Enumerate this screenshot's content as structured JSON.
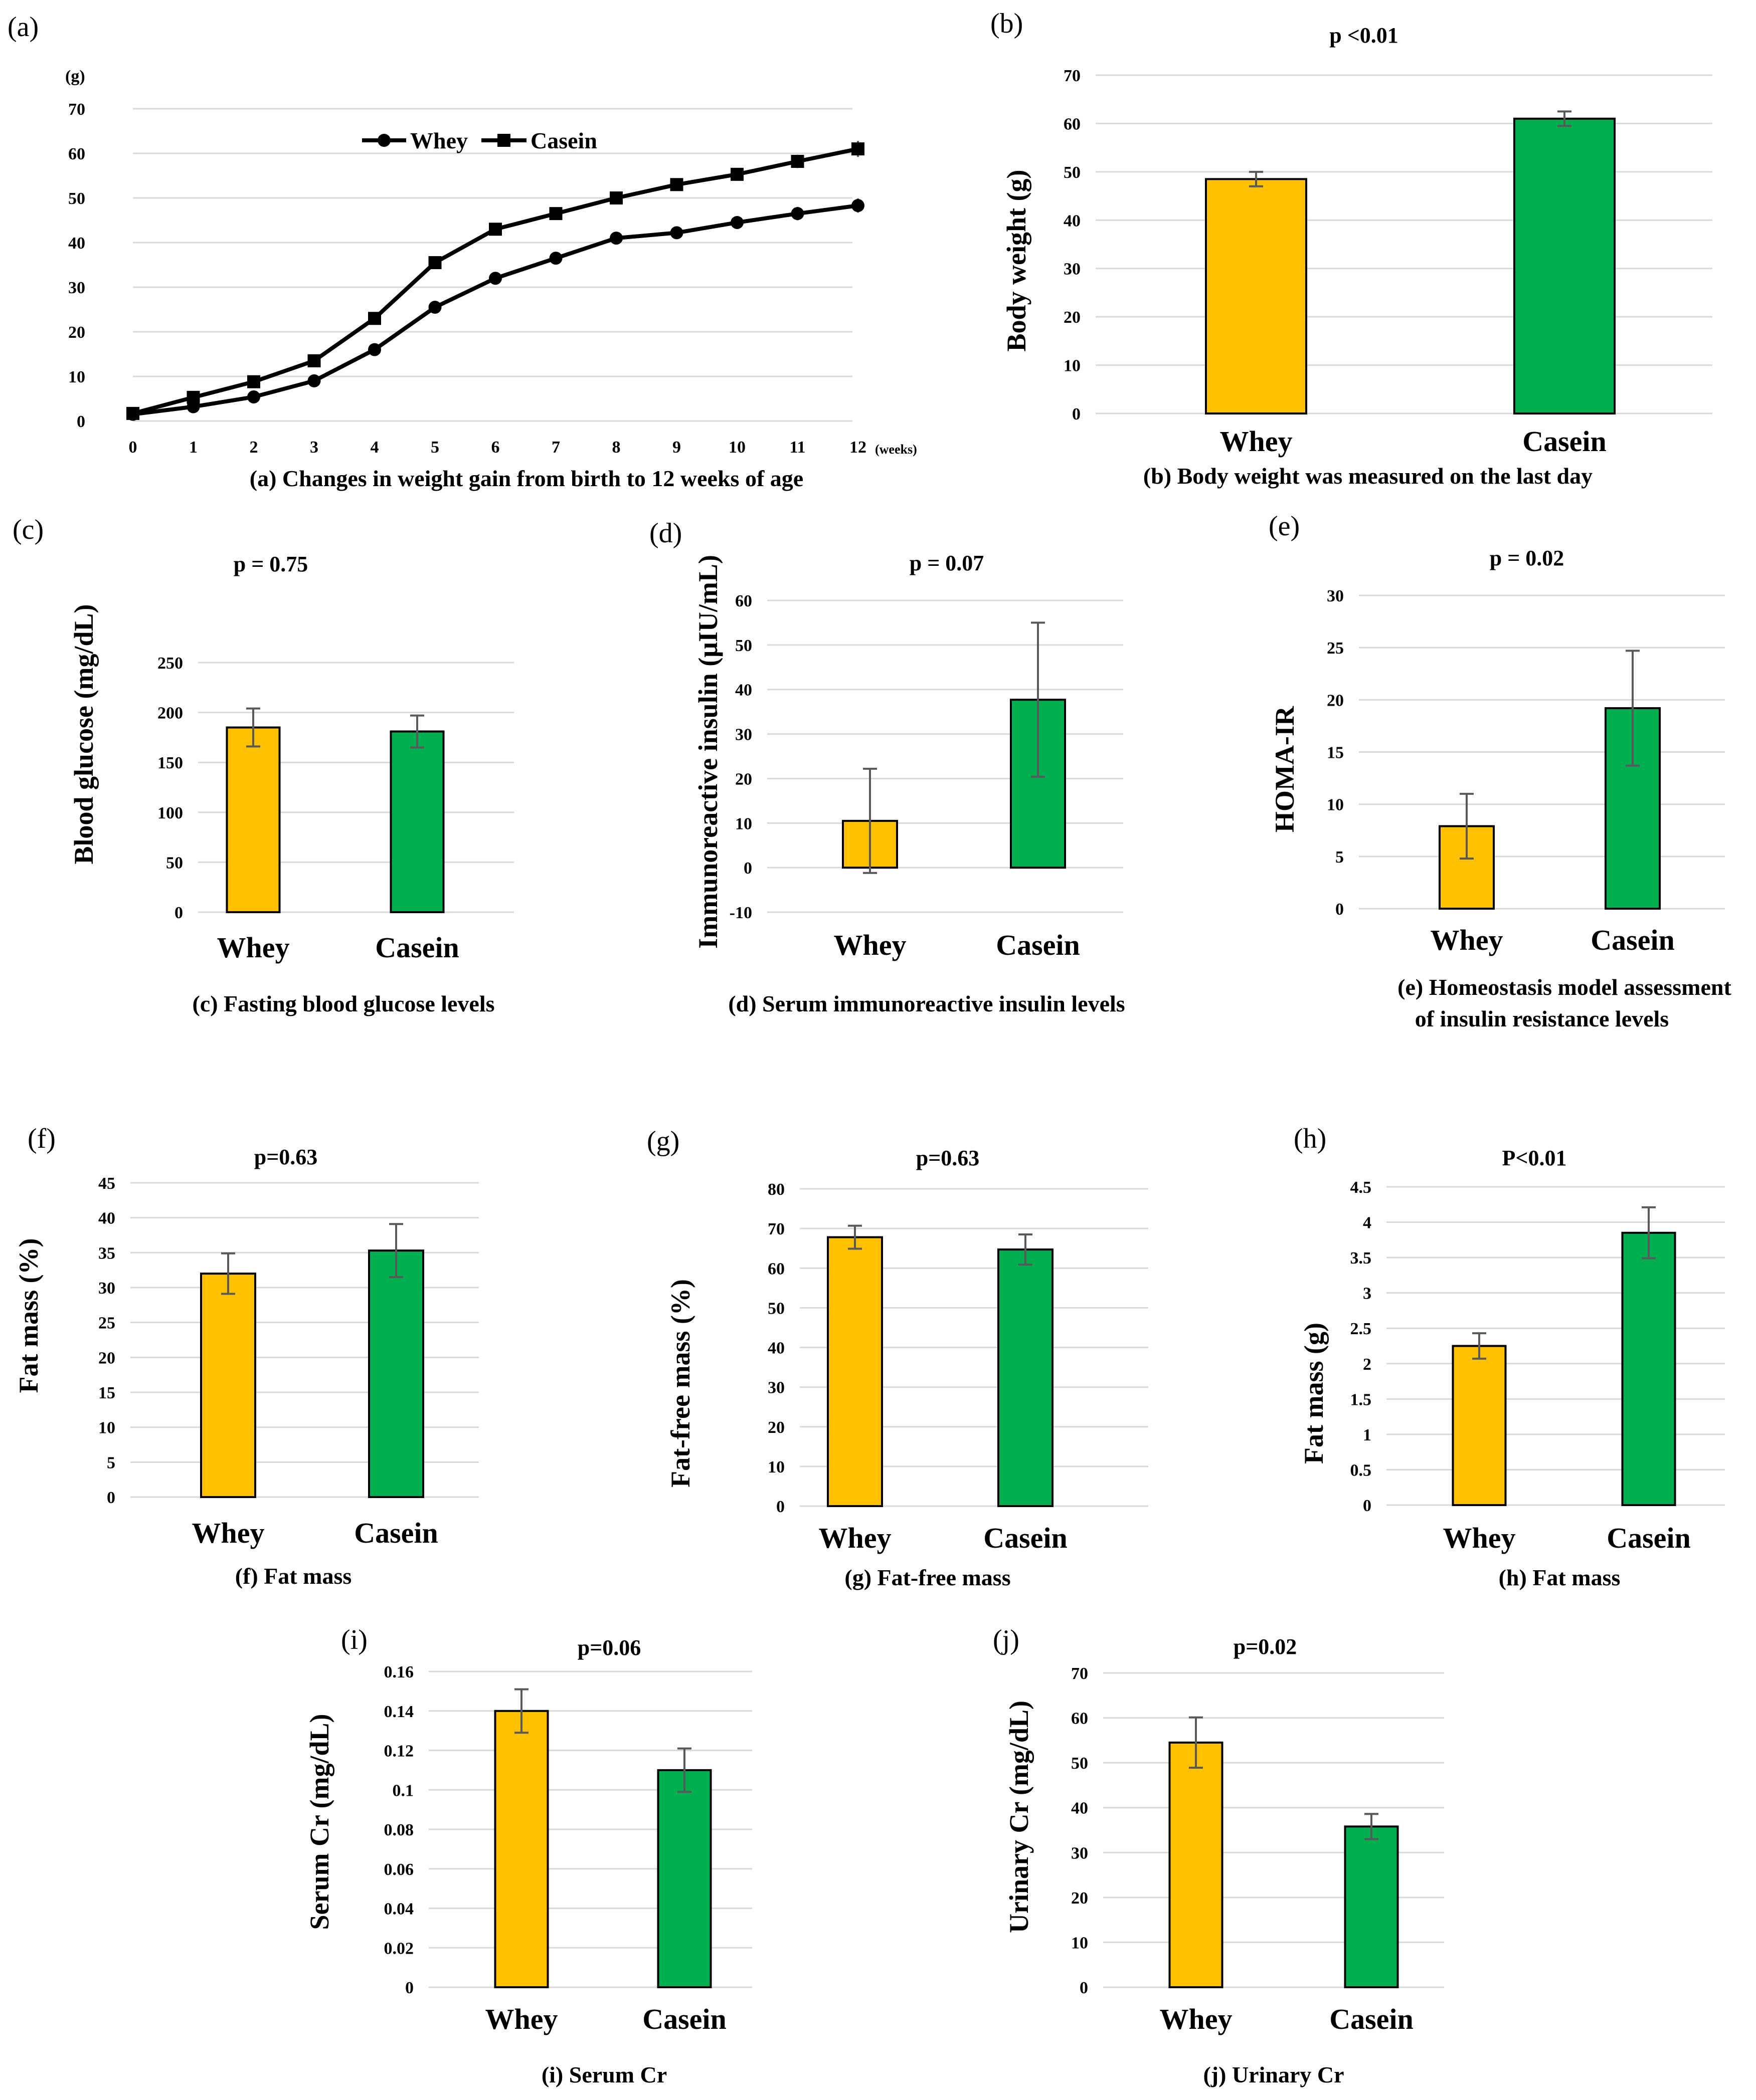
{
  "colors": {
    "whey": "#ffc000",
    "casein": "#00b050",
    "line": "#000000"
  },
  "chart_data": [
    {
      "id": "a",
      "type": "line",
      "panel_label": "(a)",
      "ylabel": "(g)",
      "xlabel": "(weeks)",
      "caption": "(a) Changes in weight gain from birth to 12 weeks of age",
      "x": [
        0,
        1,
        2,
        3,
        4,
        5,
        6,
        7,
        8,
        9,
        10,
        11,
        12
      ],
      "ylim": [
        0,
        70
      ],
      "yticks": [
        0,
        10,
        20,
        30,
        40,
        50,
        60,
        70
      ],
      "series": [
        {
          "name": "Whey",
          "marker": "circle",
          "values": [
            1.5,
            3.2,
            5.4,
            9.0,
            16.0,
            25.5,
            32.0,
            36.5,
            41.0,
            42.2,
            44.5,
            46.5,
            48.3
          ],
          "errors": [
            0.3,
            0.3,
            0.4,
            0.5,
            0.7,
            0.8,
            0.8,
            0.9,
            1.0,
            1.0,
            1.2,
            1.5,
            1.6
          ]
        },
        {
          "name": "Casein",
          "marker": "square",
          "values": [
            1.7,
            5.3,
            8.8,
            13.5,
            23.0,
            35.5,
            43.0,
            46.5,
            50.0,
            53.0,
            55.3,
            58.2,
            61.0
          ],
          "errors": [
            0.3,
            0.3,
            0.4,
            0.5,
            0.7,
            0.8,
            0.8,
            0.9,
            1.0,
            1.0,
            1.2,
            1.5,
            1.8
          ]
        }
      ]
    },
    {
      "id": "b",
      "type": "bar",
      "panel_label": "(b)",
      "p_value": "p <0.01",
      "ylabel": "Body weight (g)",
      "caption": "(b) Body weight was measured on the last day",
      "categories": [
        "Whey",
        "Casein"
      ],
      "values": [
        48.5,
        61.0
      ],
      "errors": [
        1.5,
        1.5
      ],
      "ylim": [
        0,
        70
      ],
      "yticks": [
        0,
        10,
        20,
        30,
        40,
        50,
        60,
        70
      ]
    },
    {
      "id": "c",
      "type": "bar",
      "panel_label": "(c)",
      "p_value": "p = 0.75",
      "ylabel": "Blood glucose (mg/dL)",
      "caption": "(c) Fasting blood glucose levels",
      "categories": [
        "Whey",
        "Casein"
      ],
      "values": [
        185,
        181
      ],
      "errors": [
        19,
        16
      ],
      "ylim": [
        0,
        250
      ],
      "yticks": [
        0,
        50,
        100,
        150,
        200,
        250
      ]
    },
    {
      "id": "d",
      "type": "bar",
      "panel_label": "(d)",
      "p_value": "p = 0.07",
      "ylabel": "Immunoreactive insulin (μIU/mL)",
      "caption": "(d) Serum immunoreactive insulin levels",
      "categories": [
        "Whey",
        "Casein"
      ],
      "values": [
        10.5,
        37.7
      ],
      "errors": [
        11.7,
        17.3
      ],
      "ylim": [
        -10,
        60
      ],
      "yticks": [
        -10,
        0,
        10,
        20,
        30,
        40,
        50,
        60
      ]
    },
    {
      "id": "e",
      "type": "bar",
      "panel_label": "(e)",
      "p_value": "p = 0.02",
      "ylabel": "HOMA-IR",
      "caption": "(e) Homeostasis model assessment",
      "caption2": "of insulin resistance levels",
      "categories": [
        "Whey",
        "Casein"
      ],
      "values": [
        7.9,
        19.2
      ],
      "errors": [
        3.1,
        5.5
      ],
      "ylim": [
        0,
        30
      ],
      "yticks": [
        0,
        5,
        10,
        15,
        20,
        25,
        30
      ]
    },
    {
      "id": "f",
      "type": "bar",
      "panel_label": "(f)",
      "p_value": "p=0.63",
      "ylabel": "Fat mass (%)",
      "caption": "(f) Fat mass",
      "categories": [
        "Whey",
        "Casein"
      ],
      "values": [
        32.0,
        35.3
      ],
      "errors": [
        2.9,
        3.8
      ],
      "ylim": [
        0,
        45
      ],
      "yticks": [
        0,
        5,
        10,
        15,
        20,
        25,
        30,
        35,
        40,
        45
      ]
    },
    {
      "id": "g",
      "type": "bar",
      "panel_label": "(g)",
      "p_value": "p=0.63",
      "ylabel": "Fat-free mass (%)",
      "caption": "(g) Fat-free mass",
      "categories": [
        "Whey",
        "Casein"
      ],
      "values": [
        67.8,
        64.7
      ],
      "errors": [
        2.9,
        3.8
      ],
      "ylim": [
        0,
        80
      ],
      "yticks": [
        0,
        10,
        20,
        30,
        40,
        50,
        60,
        70,
        80
      ]
    },
    {
      "id": "h",
      "type": "bar",
      "panel_label": "(h)",
      "p_value": "P<0.01",
      "ylabel": "Fat mass (g)",
      "caption": "(h) Fat mass",
      "categories": [
        "Whey",
        "Casein"
      ],
      "values": [
        2.25,
        3.85
      ],
      "errors": [
        0.18,
        0.36
      ],
      "ylim": [
        0,
        4.5
      ],
      "yticks": [
        0,
        0.5,
        1,
        1.5,
        2,
        2.5,
        3,
        3.5,
        4,
        4.5
      ]
    },
    {
      "id": "i",
      "type": "bar",
      "panel_label": "(i)",
      "p_value": "p=0.06",
      "ylabel": "Serum Cr (mg/dL)",
      "caption": "(i) Serum Cr",
      "categories": [
        "Whey",
        "Casein"
      ],
      "values": [
        0.14,
        0.11
      ],
      "errors": [
        0.011,
        0.011
      ],
      "ylim": [
        0,
        0.16
      ],
      "yticks": [
        0,
        0.02,
        0.04,
        0.06,
        0.08,
        0.1,
        0.12,
        0.14,
        0.16
      ]
    },
    {
      "id": "j",
      "type": "bar",
      "panel_label": "(j)",
      "p_value": "p=0.02",
      "ylabel": "Urinary Cr (mg/dL)",
      "caption": "(j) Urinary Cr",
      "categories": [
        "Whey",
        "Casein"
      ],
      "values": [
        54.5,
        35.8
      ],
      "errors": [
        5.6,
        2.8
      ],
      "ylim": [
        0,
        70
      ],
      "yticks": [
        0,
        10,
        20,
        30,
        40,
        50,
        60,
        70
      ]
    }
  ]
}
